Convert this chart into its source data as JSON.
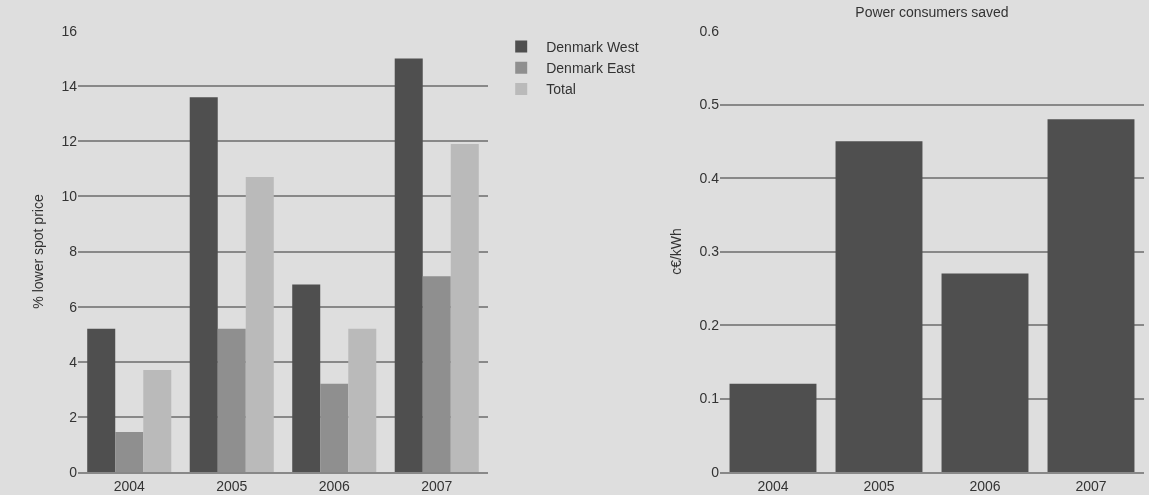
{
  "chart_data": [
    {
      "type": "bar",
      "categories": [
        "2004",
        "2005",
        "2006",
        "2007"
      ],
      "ylabel": "% lower spot price",
      "ylim": [
        0,
        16
      ],
      "yticks": [
        0,
        2,
        4,
        6,
        8,
        10,
        12,
        14,
        16
      ],
      "grid": "y",
      "legend": "top right",
      "series": [
        {
          "name": "Denmark West",
          "color": "#4f4f4f",
          "values": [
            5.2,
            13.6,
            6.8,
            15.0
          ]
        },
        {
          "name": "Denmark East",
          "color": "#8f8f8f",
          "values": [
            1.45,
            5.2,
            3.2,
            7.1
          ]
        },
        {
          "name": "Total",
          "color": "#bababa",
          "values": [
            3.7,
            10.7,
            5.2,
            11.9
          ]
        }
      ]
    },
    {
      "type": "bar",
      "title": "Power consumers saved",
      "categories": [
        "2004",
        "2005",
        "2006",
        "2007"
      ],
      "ylabel": "c€/kWh",
      "ylim": [
        0,
        0.6
      ],
      "yticks": [
        0,
        0.1,
        0.2,
        0.3,
        0.4,
        0.5,
        0.6
      ],
      "grid": "y",
      "series": [
        {
          "color": "#4f4f4f",
          "values": [
            0.12,
            0.45,
            0.27,
            0.48
          ]
        }
      ]
    }
  ]
}
